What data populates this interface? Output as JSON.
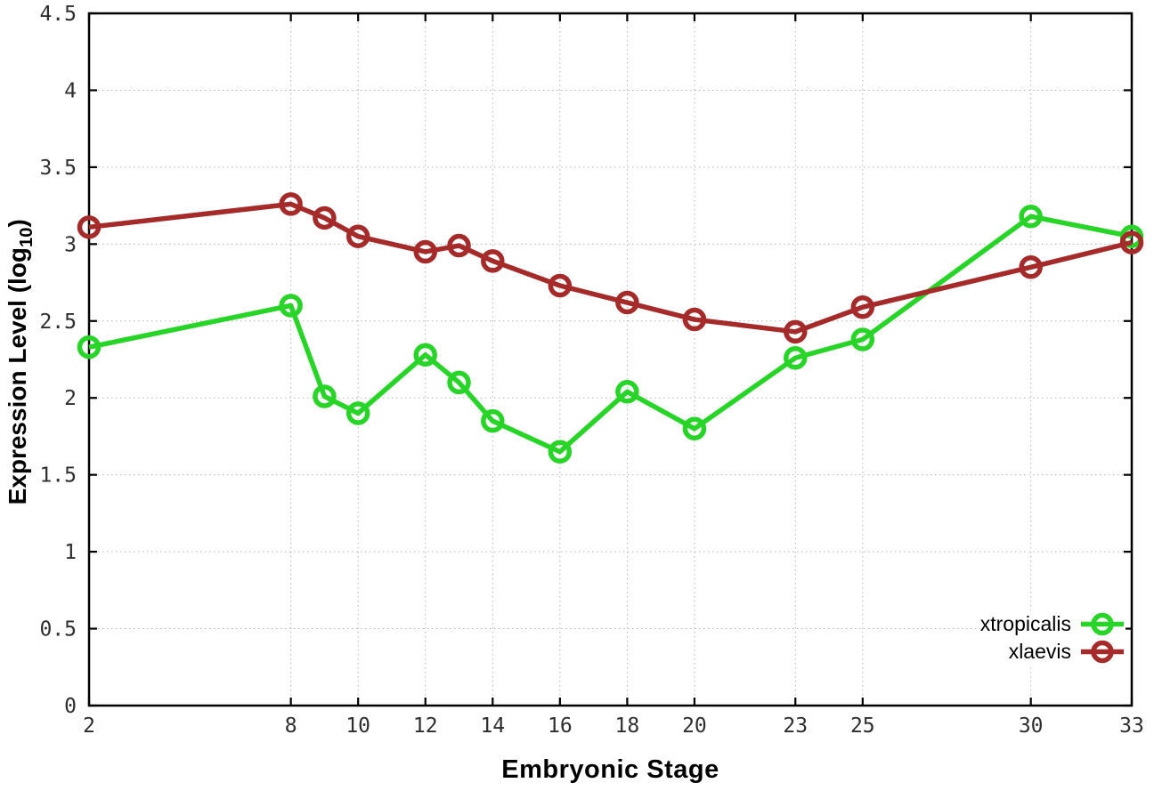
{
  "chart_data": {
    "type": "line",
    "xlabel": "Embryonic Stage",
    "ylabel": {
      "prefix": "Expression Level (log",
      "sub": "10",
      "suffix": ")"
    },
    "xlim": [
      2,
      33
    ],
    "ylim": [
      0,
      4.5
    ],
    "xticks": [
      2,
      8,
      10,
      12,
      14,
      16,
      18,
      20,
      23,
      25,
      30,
      33
    ],
    "xtick_labels": [
      "2",
      "8",
      "10",
      "12",
      "14",
      "16",
      "18",
      "20",
      "23",
      "25",
      "30",
      "33"
    ],
    "yticks": [
      0,
      0.5,
      1,
      1.5,
      2,
      2.5,
      3,
      3.5,
      4,
      4.5
    ],
    "ytick_labels": [
      "0",
      "0.5",
      "1",
      "1.5",
      "2",
      "2.5",
      "3",
      "3.5",
      "4",
      "4.5"
    ],
    "grid": true,
    "legend_position": "bottom-right",
    "x": [
      2,
      8,
      9,
      10,
      12,
      13,
      14,
      16,
      18,
      20,
      23,
      25,
      30,
      33
    ],
    "series": [
      {
        "name": "xtropicalis",
        "color": "#28d428",
        "marker": "open-circle",
        "values": [
          2.33,
          2.6,
          2.01,
          1.9,
          2.28,
          2.1,
          1.85,
          1.65,
          2.04,
          1.8,
          2.26,
          2.38,
          3.18,
          3.05
        ]
      },
      {
        "name": "xlaevis",
        "color": "#a52a2a",
        "marker": "open-circle",
        "values": [
          3.11,
          3.26,
          3.17,
          3.05,
          2.95,
          2.99,
          2.89,
          2.73,
          2.62,
          2.51,
          2.43,
          2.59,
          2.85,
          3.01
        ]
      }
    ],
    "colors": {
      "grid": "#b5b5b5",
      "axis": "#000000",
      "tick_label": "#2e2e2e",
      "background": "#ffffff"
    }
  }
}
